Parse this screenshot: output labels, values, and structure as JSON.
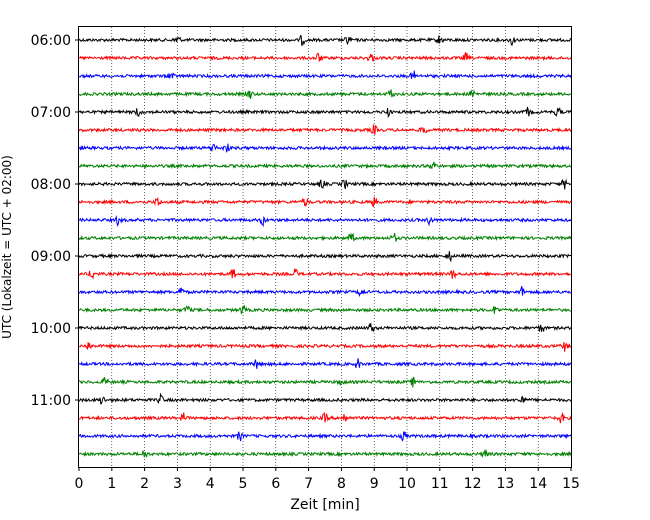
{
  "chart_data": {
    "type": "line",
    "title": "",
    "xlabel": "Zeit  [min]",
    "ylabel": "UTC (Lokalzeit = UTC + 02:00)",
    "xlim": [
      0,
      15
    ],
    "x_ticks": [
      0,
      1,
      2,
      3,
      4,
      5,
      6,
      7,
      8,
      9,
      10,
      11,
      12,
      13,
      14,
      15
    ],
    "y_tick_labels": [
      "06:00",
      "07:00",
      "08:00",
      "09:00",
      "10:00",
      "11:00"
    ],
    "grid": "vertical dotted at each minute",
    "trace_colors": [
      "#000000",
      "#ff0000",
      "#0000ff",
      "#008000"
    ],
    "series": [
      {
        "start": "06:00",
        "color": "#000000",
        "events_min": [
          3.0,
          6.8,
          8.2,
          11.0,
          13.2
        ]
      },
      {
        "start": "06:15",
        "color": "#ff0000",
        "events_min": [
          7.3,
          8.9,
          11.8
        ]
      },
      {
        "start": "06:30",
        "color": "#0000ff",
        "events_min": [
          2.8,
          10.2
        ]
      },
      {
        "start": "06:45",
        "color": "#008000",
        "events_min": [
          5.2,
          9.5,
          12.0
        ]
      },
      {
        "start": "07:00",
        "color": "#000000",
        "events_min": [
          1.8,
          9.4,
          13.7,
          14.6
        ]
      },
      {
        "start": "07:15",
        "color": "#ff0000",
        "events_min": [
          9.0,
          10.5
        ]
      },
      {
        "start": "07:30",
        "color": "#0000ff",
        "events_min": [
          4.1,
          4.5
        ]
      },
      {
        "start": "07:45",
        "color": "#008000",
        "events_min": [
          10.8
        ]
      },
      {
        "start": "08:00",
        "color": "#000000",
        "events_min": [
          7.4,
          8.1,
          14.8
        ]
      },
      {
        "start": "08:15",
        "color": "#ff0000",
        "events_min": [
          2.4,
          6.9,
          9.0
        ]
      },
      {
        "start": "08:30",
        "color": "#0000ff",
        "events_min": [
          1.2,
          5.6,
          10.7
        ]
      },
      {
        "start": "08:45",
        "color": "#008000",
        "events_min": [
          8.3,
          9.6
        ]
      },
      {
        "start": "09:00",
        "color": "#000000",
        "events_min": [
          11.3
        ]
      },
      {
        "start": "09:15",
        "color": "#ff0000",
        "events_min": [
          0.4,
          4.7,
          6.6,
          11.4
        ]
      },
      {
        "start": "09:30",
        "color": "#0000ff",
        "events_min": [
          3.1,
          8.6,
          13.5
        ]
      },
      {
        "start": "09:45",
        "color": "#008000",
        "events_min": [
          3.3,
          5.0,
          12.7
        ]
      },
      {
        "start": "10:00",
        "color": "#000000",
        "events_min": [
          8.9,
          14.1
        ]
      },
      {
        "start": "10:15",
        "color": "#ff0000",
        "events_min": [
          0.3,
          14.8
        ]
      },
      {
        "start": "10:30",
        "color": "#0000ff",
        "events_min": [
          5.4,
          8.5
        ]
      },
      {
        "start": "10:45",
        "color": "#008000",
        "events_min": [
          0.8,
          8.0,
          10.2
        ]
      },
      {
        "start": "11:00",
        "color": "#000000",
        "events_min": [
          0.7,
          2.5,
          13.5
        ]
      },
      {
        "start": "11:15",
        "color": "#ff0000",
        "events_min": [
          3.2,
          7.5,
          8.1,
          14.7
        ]
      },
      {
        "start": "11:30",
        "color": "#0000ff",
        "events_min": [
          4.9,
          9.9
        ]
      },
      {
        "start": "11:45",
        "color": "#008000",
        "events_min": [
          2.0,
          12.4
        ]
      }
    ]
  }
}
